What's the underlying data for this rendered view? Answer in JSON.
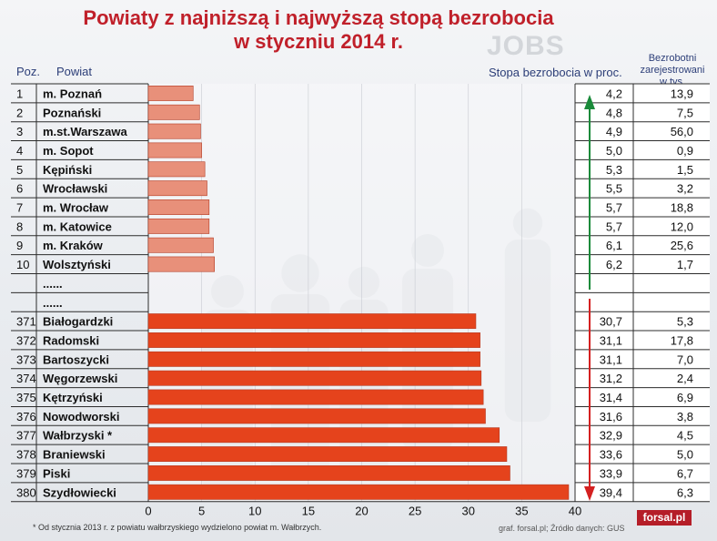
{
  "title_line1": "Powiaty z najniższą i najwyższą stopą bezrobocia",
  "title_line2": "w styczniu 2014 r.",
  "col_pos": "Poz.",
  "col_powiat": "Powiat",
  "col_rate": "Stopa bezrobocia w proc.",
  "col_reg_1": "Bezrobotni",
  "col_reg_2": "zarejestrowani",
  "col_reg_3": "w tys.",
  "watermark": "JOBS",
  "footnote": "* Od stycznia 2013 r. z  powiatu  wałbrzyskiego wydzielono powiat m. Wałbrzych.",
  "source": "graf. forsal.pl; Źródło danych: GUS",
  "brand": "forsal.pl",
  "colors": {
    "low_bar": "#e8907a",
    "high_bar": "#e5431c",
    "title": "#c0202a",
    "arrow_up": "#1a8a3a",
    "arrow_down": "#d42020"
  },
  "chart_data": {
    "type": "bar",
    "orientation": "horizontal",
    "xlim": [
      0,
      40
    ],
    "xticks": [
      "0",
      "5",
      "10",
      "15",
      "20",
      "25",
      "30",
      "35",
      "40"
    ],
    "rows": [
      {
        "pos": "1",
        "name": "m. Poznań",
        "value": 4.2,
        "value_label": "4,2",
        "registered": "13,9",
        "group": "low"
      },
      {
        "pos": "2",
        "name": "Poznański",
        "value": 4.8,
        "value_label": "4,8",
        "registered": "7,5",
        "group": "low"
      },
      {
        "pos": "3",
        "name": "m.st.Warszawa",
        "value": 4.9,
        "value_label": "4,9",
        "registered": "56,0",
        "group": "low"
      },
      {
        "pos": "4",
        "name": "m. Sopot",
        "value": 5.0,
        "value_label": "5,0",
        "registered": "0,9",
        "group": "low"
      },
      {
        "pos": "5",
        "name": "Kępiński",
        "value": 5.3,
        "value_label": "5,3",
        "registered": "1,5",
        "group": "low"
      },
      {
        "pos": "6",
        "name": "Wrocławski",
        "value": 5.5,
        "value_label": "5,5",
        "registered": "3,2",
        "group": "low"
      },
      {
        "pos": "7",
        "name": "m. Wrocław",
        "value": 5.7,
        "value_label": "5,7",
        "registered": "18,8",
        "group": "low"
      },
      {
        "pos": "8",
        "name": "m. Katowice",
        "value": 5.7,
        "value_label": "5,7",
        "registered": "12,0",
        "group": "low"
      },
      {
        "pos": "9",
        "name": "m. Kraków",
        "value": 6.1,
        "value_label": "6,1",
        "registered": "25,6",
        "group": "low"
      },
      {
        "pos": "10",
        "name": "Wolsztyński",
        "value": 6.2,
        "value_label": "6,2",
        "registered": "1,7",
        "group": "low"
      },
      {
        "pos": "",
        "name": "......",
        "value": null,
        "value_label": "",
        "registered": "",
        "group": "gap"
      },
      {
        "pos": "",
        "name": "......",
        "value": null,
        "value_label": "",
        "registered": "",
        "group": "gap"
      },
      {
        "pos": "371",
        "name": "Białogardzki",
        "value": 30.7,
        "value_label": "30,7",
        "registered": "5,3",
        "group": "high"
      },
      {
        "pos": "372",
        "name": "Radomski",
        "value": 31.1,
        "value_label": "31,1",
        "registered": "17,8",
        "group": "high"
      },
      {
        "pos": "373",
        "name": "Bartoszycki",
        "value": 31.1,
        "value_label": "31,1",
        "registered": "7,0",
        "group": "high"
      },
      {
        "pos": "374",
        "name": "Węgorzewski",
        "value": 31.2,
        "value_label": "31,2",
        "registered": "2,4",
        "group": "high"
      },
      {
        "pos": "375",
        "name": "Kętrzyński",
        "value": 31.4,
        "value_label": "31,4",
        "registered": "6,9",
        "group": "high"
      },
      {
        "pos": "376",
        "name": "Nowodworski",
        "value": 31.6,
        "value_label": "31,6",
        "registered": "3,8",
        "group": "high"
      },
      {
        "pos": "377",
        "name": "Wałbrzyski *",
        "value": 32.9,
        "value_label": "32,9",
        "registered": "4,5",
        "group": "high"
      },
      {
        "pos": "378",
        "name": "Braniewski",
        "value": 33.6,
        "value_label": "33,6",
        "registered": "5,0",
        "group": "high"
      },
      {
        "pos": "379",
        "name": "Piski",
        "value": 33.9,
        "value_label": "33,9",
        "registered": "6,7",
        "group": "high"
      },
      {
        "pos": "380",
        "name": "Szydłowiecki",
        "value": 39.4,
        "value_label": "39,4",
        "registered": "6,3",
        "group": "high"
      }
    ]
  }
}
